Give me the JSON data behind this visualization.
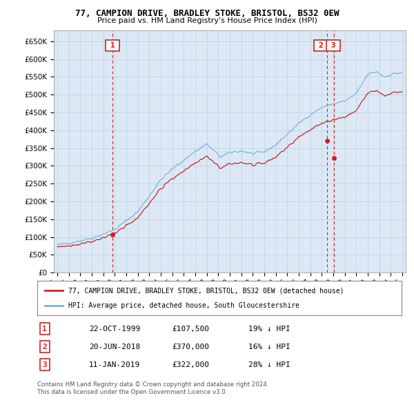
{
  "title": "77, CAMPION DRIVE, BRADLEY STOKE, BRISTOL, BS32 0EW",
  "subtitle": "Price paid vs. HM Land Registry's House Price Index (HPI)",
  "legend_line1": "77, CAMPION DRIVE, BRADLEY STOKE, BRISTOL, BS32 0EW (detached house)",
  "legend_line2": "HPI: Average price, detached house, South Gloucestershire",
  "transactions": [
    {
      "label": "1",
      "date": "22-OCT-1999",
      "price": 107500,
      "x": 1999.81,
      "pct": "19% ↓ HPI"
    },
    {
      "label": "2",
      "date": "20-JUN-2018",
      "price": 370000,
      "x": 2018.47,
      "pct": "16% ↓ HPI"
    },
    {
      "label": "3",
      "date": "11-JAN-2019",
      "price": 322000,
      "x": 2019.03,
      "pct": "28% ↓ HPI"
    }
  ],
  "footer_line1": "Contains HM Land Registry data © Crown copyright and database right 2024.",
  "footer_line2": "This data is licensed under the Open Government Licence v3.0.",
  "hpi_color": "#7ab3d9",
  "price_color": "#cc2222",
  "vline_color": "#cc2222",
  "chart_bg": "#dce9f5",
  "bg_color": "#ffffff",
  "grid_color": "#b0c8e0",
  "ylim": [
    0,
    680000
  ],
  "xlim_start": 1994.7,
  "xlim_end": 2025.3,
  "yticks": [
    0,
    50000,
    100000,
    150000,
    200000,
    250000,
    300000,
    350000,
    400000,
    450000,
    500000,
    550000,
    600000,
    650000
  ],
  "xticks": [
    1995,
    1996,
    1997,
    1998,
    1999,
    2000,
    2001,
    2002,
    2003,
    2004,
    2005,
    2006,
    2007,
    2008,
    2009,
    2010,
    2011,
    2012,
    2013,
    2014,
    2015,
    2016,
    2017,
    2018,
    2019,
    2020,
    2021,
    2022,
    2023,
    2024,
    2025
  ],
  "hpi_data_x": [
    1995.0,
    1995.083,
    1995.167,
    1995.25,
    1995.333,
    1995.417,
    1995.5,
    1995.583,
    1995.667,
    1995.75,
    1995.833,
    1995.917,
    1996.0,
    1996.083,
    1996.167,
    1996.25,
    1996.333,
    1996.417,
    1996.5,
    1996.583,
    1996.667,
    1996.75,
    1996.833,
    1996.917,
    1997.0,
    1997.083,
    1997.167,
    1997.25,
    1997.333,
    1997.417,
    1997.5,
    1997.583,
    1997.667,
    1997.75,
    1997.833,
    1997.917,
    1998.0,
    1998.083,
    1998.167,
    1998.25,
    1998.333,
    1998.417,
    1998.5,
    1998.583,
    1998.667,
    1998.75,
    1998.833,
    1998.917,
    1999.0,
    1999.083,
    1999.167,
    1999.25,
    1999.333,
    1999.417,
    1999.5,
    1999.583,
    1999.667,
    1999.75,
    1999.833,
    1999.917,
    2000.0,
    2000.083,
    2000.167,
    2000.25,
    2000.333,
    2000.417,
    2000.5,
    2000.583,
    2000.667,
    2000.75,
    2000.833,
    2000.917,
    2001.0,
    2001.083,
    2001.167,
    2001.25,
    2001.333,
    2001.417,
    2001.5,
    2001.583,
    2001.667,
    2001.75,
    2001.833,
    2001.917,
    2002.0,
    2002.083,
    2002.167,
    2002.25,
    2002.333,
    2002.417,
    2002.5,
    2002.583,
    2002.667,
    2002.75,
    2002.833,
    2002.917,
    2003.0,
    2003.083,
    2003.167,
    2003.25,
    2003.333,
    2003.417,
    2003.5,
    2003.583,
    2003.667,
    2003.75,
    2003.833,
    2003.917,
    2004.0,
    2004.083,
    2004.167,
    2004.25,
    2004.333,
    2004.417,
    2004.5,
    2004.583,
    2004.667,
    2004.75,
    2004.833,
    2004.917,
    2005.0,
    2005.083,
    2005.167,
    2005.25,
    2005.333,
    2005.417,
    2005.5,
    2005.583,
    2005.667,
    2005.75,
    2005.833,
    2005.917,
    2006.0,
    2006.083,
    2006.167,
    2006.25,
    2006.333,
    2006.417,
    2006.5,
    2006.583,
    2006.667,
    2006.75,
    2006.833,
    2006.917,
    2007.0,
    2007.083,
    2007.167,
    2007.25,
    2007.333,
    2007.417,
    2007.5,
    2007.583,
    2007.667,
    2007.75,
    2007.833,
    2007.917,
    2008.0,
    2008.083,
    2008.167,
    2008.25,
    2008.333,
    2008.417,
    2008.5,
    2008.583,
    2008.667,
    2008.75,
    2008.833,
    2008.917,
    2009.0,
    2009.083,
    2009.167,
    2009.25,
    2009.333,
    2009.417,
    2009.5,
    2009.583,
    2009.667,
    2009.75,
    2009.833,
    2009.917,
    2010.0,
    2010.083,
    2010.167,
    2010.25,
    2010.333,
    2010.417,
    2010.5,
    2010.583,
    2010.667,
    2010.75,
    2010.833,
    2010.917,
    2011.0,
    2011.083,
    2011.167,
    2011.25,
    2011.333,
    2011.417,
    2011.5,
    2011.583,
    2011.667,
    2011.75,
    2011.833,
    2011.917,
    2012.0,
    2012.083,
    2012.167,
    2012.25,
    2012.333,
    2012.417,
    2012.5,
    2012.583,
    2012.667,
    2012.75,
    2012.833,
    2012.917,
    2013.0,
    2013.083,
    2013.167,
    2013.25,
    2013.333,
    2013.417,
    2013.5,
    2013.583,
    2013.667,
    2013.75,
    2013.833,
    2013.917,
    2014.0,
    2014.083,
    2014.167,
    2014.25,
    2014.333,
    2014.417,
    2014.5,
    2014.583,
    2014.667,
    2014.75,
    2014.833,
    2014.917,
    2015.0,
    2015.083,
    2015.167,
    2015.25,
    2015.333,
    2015.417,
    2015.5,
    2015.583,
    2015.667,
    2015.75,
    2015.833,
    2015.917,
    2016.0,
    2016.083,
    2016.167,
    2016.25,
    2016.333,
    2016.417,
    2016.5,
    2016.583,
    2016.667,
    2016.75,
    2016.833,
    2016.917,
    2017.0,
    2017.083,
    2017.167,
    2017.25,
    2017.333,
    2017.417,
    2017.5,
    2017.583,
    2017.667,
    2017.75,
    2017.833,
    2017.917,
    2018.0,
    2018.083,
    2018.167,
    2018.25,
    2018.333,
    2018.417,
    2018.5,
    2018.583,
    2018.667,
    2018.75,
    2018.833,
    2018.917,
    2019.0,
    2019.083,
    2019.167,
    2019.25,
    2019.333,
    2019.417,
    2019.5,
    2019.583,
    2019.667,
    2019.75,
    2019.833,
    2019.917,
    2020.0,
    2020.083,
    2020.167,
    2020.25,
    2020.333,
    2020.417,
    2020.5,
    2020.583,
    2020.667,
    2020.75,
    2020.833,
    2020.917,
    2021.0,
    2021.083,
    2021.167,
    2021.25,
    2021.333,
    2021.417,
    2021.5,
    2021.583,
    2021.667,
    2021.75,
    2021.833,
    2021.917,
    2022.0,
    2022.083,
    2022.167,
    2022.25,
    2022.333,
    2022.417,
    2022.5,
    2022.583,
    2022.667,
    2022.75,
    2022.833,
    2022.917,
    2023.0,
    2023.083,
    2023.167,
    2023.25,
    2023.333,
    2023.417,
    2023.5,
    2023.583,
    2023.667,
    2023.75,
    2023.833,
    2023.917,
    2024.0,
    2024.083,
    2024.167,
    2024.25,
    2024.333,
    2024.417,
    2024.5,
    2024.583,
    2024.667,
    2024.75,
    2024.833,
    2024.917,
    2025.0
  ]
}
